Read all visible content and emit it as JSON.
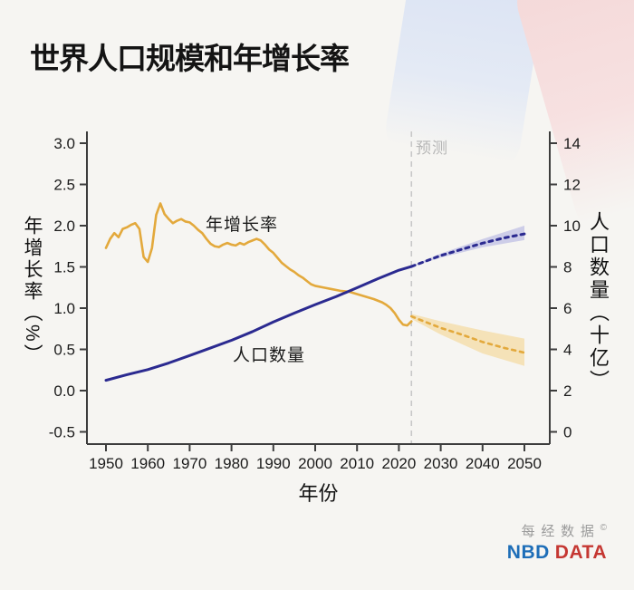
{
  "page": {
    "title": "世界人口规模和年增长率",
    "logo": {
      "cn": "每经数据",
      "copyright": "©",
      "nbd": "NBD",
      "data": "DATA"
    }
  },
  "chart_data": {
    "type": "line",
    "title": "世界人口规模和年增长率",
    "x_axis": {
      "label": "年份",
      "range": [
        1950,
        2050
      ],
      "tick_values": [
        1950,
        1960,
        1970,
        1980,
        1990,
        2000,
        2010,
        2020,
        2030,
        2040,
        2050
      ],
      "tick_labels": [
        "1950",
        "1960",
        "1970",
        "1980",
        "1990",
        "2000",
        "2010",
        "2020",
        "2030",
        "2040",
        "2050"
      ]
    },
    "y_left": {
      "label": "年增长率（%）",
      "range": [
        -0.5,
        3.0
      ],
      "tick_values": [
        3.0,
        2.5,
        2.0,
        1.5,
        1.0,
        0.5,
        0.0,
        -0.5
      ],
      "tick_labels": [
        "3.0",
        "2.5",
        "2.0",
        "1.5",
        "1.0",
        "0.5",
        "0.0",
        "-0.5"
      ]
    },
    "y_right": {
      "label": "人口数量（十亿）",
      "range": [
        0,
        14
      ],
      "tick_values": [
        14,
        12,
        10,
        8,
        6,
        4,
        2,
        0
      ],
      "tick_labels": [
        "14",
        "12",
        "10",
        "8",
        "6",
        "4",
        "2",
        "0"
      ]
    },
    "forecast_divider": {
      "year": 2023,
      "label": "预测",
      "color": "#c8c8c8"
    },
    "annotations": {
      "growth": "年增长率",
      "population": "人口数量"
    },
    "colors": {
      "growth": "#E3A93C",
      "population": "#2B2A90",
      "growth_band": "rgba(243,205,112,0.45)",
      "population_band": "rgba(140,140,215,0.38)"
    },
    "series": [
      {
        "id": "growth-history",
        "name": "年增长率",
        "axis": "left",
        "style": "solid",
        "color": "#E3A93C",
        "width": 2.6,
        "points": [
          [
            1950,
            1.73
          ],
          [
            1951,
            1.84
          ],
          [
            1952,
            1.91
          ],
          [
            1953,
            1.86
          ],
          [
            1954,
            1.96
          ],
          [
            1955,
            1.98
          ],
          [
            1956,
            2.01
          ],
          [
            1957,
            2.03
          ],
          [
            1958,
            1.96
          ],
          [
            1959,
            1.62
          ],
          [
            1960,
            1.56
          ],
          [
            1961,
            1.73
          ],
          [
            1962,
            2.13
          ],
          [
            1963,
            2.27
          ],
          [
            1964,
            2.14
          ],
          [
            1965,
            2.08
          ],
          [
            1966,
            2.03
          ],
          [
            1967,
            2.06
          ],
          [
            1968,
            2.08
          ],
          [
            1969,
            2.05
          ],
          [
            1970,
            2.04
          ],
          [
            1971,
            2.0
          ],
          [
            1972,
            1.95
          ],
          [
            1973,
            1.91
          ],
          [
            1974,
            1.84
          ],
          [
            1975,
            1.78
          ],
          [
            1976,
            1.75
          ],
          [
            1977,
            1.74
          ],
          [
            1978,
            1.77
          ],
          [
            1979,
            1.79
          ],
          [
            1980,
            1.77
          ],
          [
            1981,
            1.76
          ],
          [
            1982,
            1.79
          ],
          [
            1983,
            1.77
          ],
          [
            1984,
            1.8
          ],
          [
            1985,
            1.82
          ],
          [
            1986,
            1.84
          ],
          [
            1987,
            1.82
          ],
          [
            1988,
            1.77
          ],
          [
            1989,
            1.71
          ],
          [
            1990,
            1.67
          ],
          [
            1991,
            1.61
          ],
          [
            1992,
            1.55
          ],
          [
            1993,
            1.51
          ],
          [
            1994,
            1.47
          ],
          [
            1995,
            1.44
          ],
          [
            1996,
            1.4
          ],
          [
            1997,
            1.37
          ],
          [
            1998,
            1.33
          ],
          [
            1999,
            1.29
          ],
          [
            2000,
            1.27
          ],
          [
            2002,
            1.25
          ],
          [
            2004,
            1.23
          ],
          [
            2006,
            1.21
          ],
          [
            2008,
            1.2
          ],
          [
            2010,
            1.17
          ],
          [
            2012,
            1.14
          ],
          [
            2014,
            1.11
          ],
          [
            2016,
            1.07
          ],
          [
            2017,
            1.04
          ],
          [
            2018,
            1.0
          ],
          [
            2019,
            0.94
          ],
          [
            2020,
            0.86
          ],
          [
            2021,
            0.8
          ],
          [
            2022,
            0.79
          ],
          [
            2023,
            0.84
          ]
        ]
      },
      {
        "id": "growth-forecast",
        "name": "年增长率（预测）",
        "axis": "left",
        "style": "dotted",
        "color": "#E3A93C",
        "width": 2.6,
        "points": [
          [
            2023,
            0.9
          ],
          [
            2025,
            0.86
          ],
          [
            2030,
            0.76
          ],
          [
            2035,
            0.68
          ],
          [
            2040,
            0.59
          ],
          [
            2045,
            0.52
          ],
          [
            2050,
            0.46
          ]
        ],
        "band": {
          "color": "rgba(243,205,112,0.45)",
          "upper": [
            [
              2023,
              0.93
            ],
            [
              2030,
              0.84
            ],
            [
              2040,
              0.73
            ],
            [
              2050,
              0.63
            ]
          ],
          "lower": [
            [
              2023,
              0.87
            ],
            [
              2030,
              0.68
            ],
            [
              2040,
              0.45
            ],
            [
              2050,
              0.3
            ]
          ]
        }
      },
      {
        "id": "population-history",
        "name": "人口数量",
        "axis": "right",
        "style": "solid",
        "color": "#2B2A90",
        "width": 3,
        "points": [
          [
            1950,
            2.5
          ],
          [
            1955,
            2.77
          ],
          [
            1960,
            3.02
          ],
          [
            1965,
            3.34
          ],
          [
            1970,
            3.7
          ],
          [
            1975,
            4.07
          ],
          [
            1980,
            4.44
          ],
          [
            1985,
            4.86
          ],
          [
            1990,
            5.33
          ],
          [
            1995,
            5.76
          ],
          [
            2000,
            6.17
          ],
          [
            2005,
            6.56
          ],
          [
            2010,
            6.99
          ],
          [
            2015,
            7.43
          ],
          [
            2020,
            7.84
          ],
          [
            2023,
            8.02
          ]
        ],
        "cross_note": ""
      },
      {
        "id": "population-forecast",
        "name": "人口数量（预测）",
        "axis": "right",
        "style": "dotted",
        "color": "#2B2A90",
        "width": 3,
        "points": [
          [
            2023,
            8.02
          ],
          [
            2030,
            8.55
          ],
          [
            2035,
            8.85
          ],
          [
            2040,
            9.15
          ],
          [
            2045,
            9.4
          ],
          [
            2050,
            9.6
          ]
        ],
        "band": {
          "color": "rgba(140,140,215,0.38)",
          "upper": [
            [
              2023,
              8.05
            ],
            [
              2030,
              8.65
            ],
            [
              2040,
              9.35
            ],
            [
              2050,
              10.0
            ]
          ],
          "lower": [
            [
              2023,
              7.99
            ],
            [
              2030,
              8.45
            ],
            [
              2040,
              8.95
            ],
            [
              2050,
              9.3
            ]
          ]
        }
      }
    ]
  }
}
